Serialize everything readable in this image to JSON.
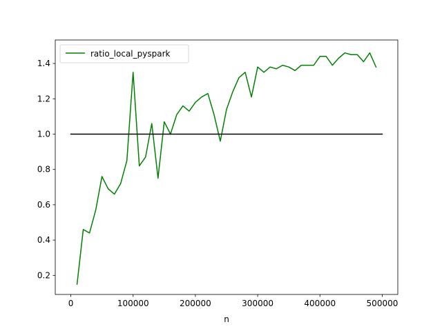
{
  "chart_data": {
    "type": "line",
    "title": "",
    "xlabel": "n",
    "ylabel": "",
    "xlim": [
      -25000,
      525000
    ],
    "ylim": [
      0.092,
      1.533
    ],
    "xticks": [
      0,
      100000,
      200000,
      300000,
      400000,
      500000
    ],
    "xtick_labels": [
      "0",
      "100000",
      "200000",
      "300000",
      "400000",
      "500000"
    ],
    "yticks": [
      0.2,
      0.4,
      0.6,
      0.8,
      1.0,
      1.2,
      1.4
    ],
    "ytick_labels": [
      "0.2",
      "0.4",
      "0.6",
      "0.8",
      "1.0",
      "1.2",
      "1.4"
    ],
    "grid": false,
    "legend_position": "upper-left",
    "series": [
      {
        "name": "ratio_local_pyspark",
        "color": "#008000",
        "x": [
          10000,
          20000,
          30000,
          40000,
          50000,
          60000,
          70000,
          80000,
          90000,
          100000,
          110000,
          120000,
          130000,
          140000,
          150000,
          160000,
          170000,
          180000,
          190000,
          200000,
          210000,
          220000,
          230000,
          240000,
          250000,
          260000,
          270000,
          280000,
          290000,
          300000,
          310000,
          320000,
          330000,
          340000,
          350000,
          360000,
          370000,
          380000,
          390000,
          400000,
          410000,
          420000,
          430000,
          440000,
          450000,
          460000,
          470000,
          480000,
          490000
        ],
        "y": [
          0.15,
          0.46,
          0.44,
          0.57,
          0.76,
          0.69,
          0.66,
          0.72,
          0.85,
          1.35,
          0.82,
          0.87,
          1.06,
          0.75,
          1.07,
          1.0,
          1.11,
          1.16,
          1.13,
          1.18,
          1.21,
          1.23,
          1.11,
          0.96,
          1.14,
          1.24,
          1.32,
          1.35,
          1.21,
          1.38,
          1.35,
          1.38,
          1.37,
          1.39,
          1.38,
          1.36,
          1.39,
          1.39,
          1.39,
          1.44,
          1.44,
          1.39,
          1.43,
          1.46,
          1.45,
          1.45,
          1.41,
          1.46,
          1.38
        ]
      },
      {
        "name": "",
        "color": "#000000",
        "x": [
          0,
          500000
        ],
        "y": [
          1.0,
          1.0
        ]
      }
    ]
  }
}
